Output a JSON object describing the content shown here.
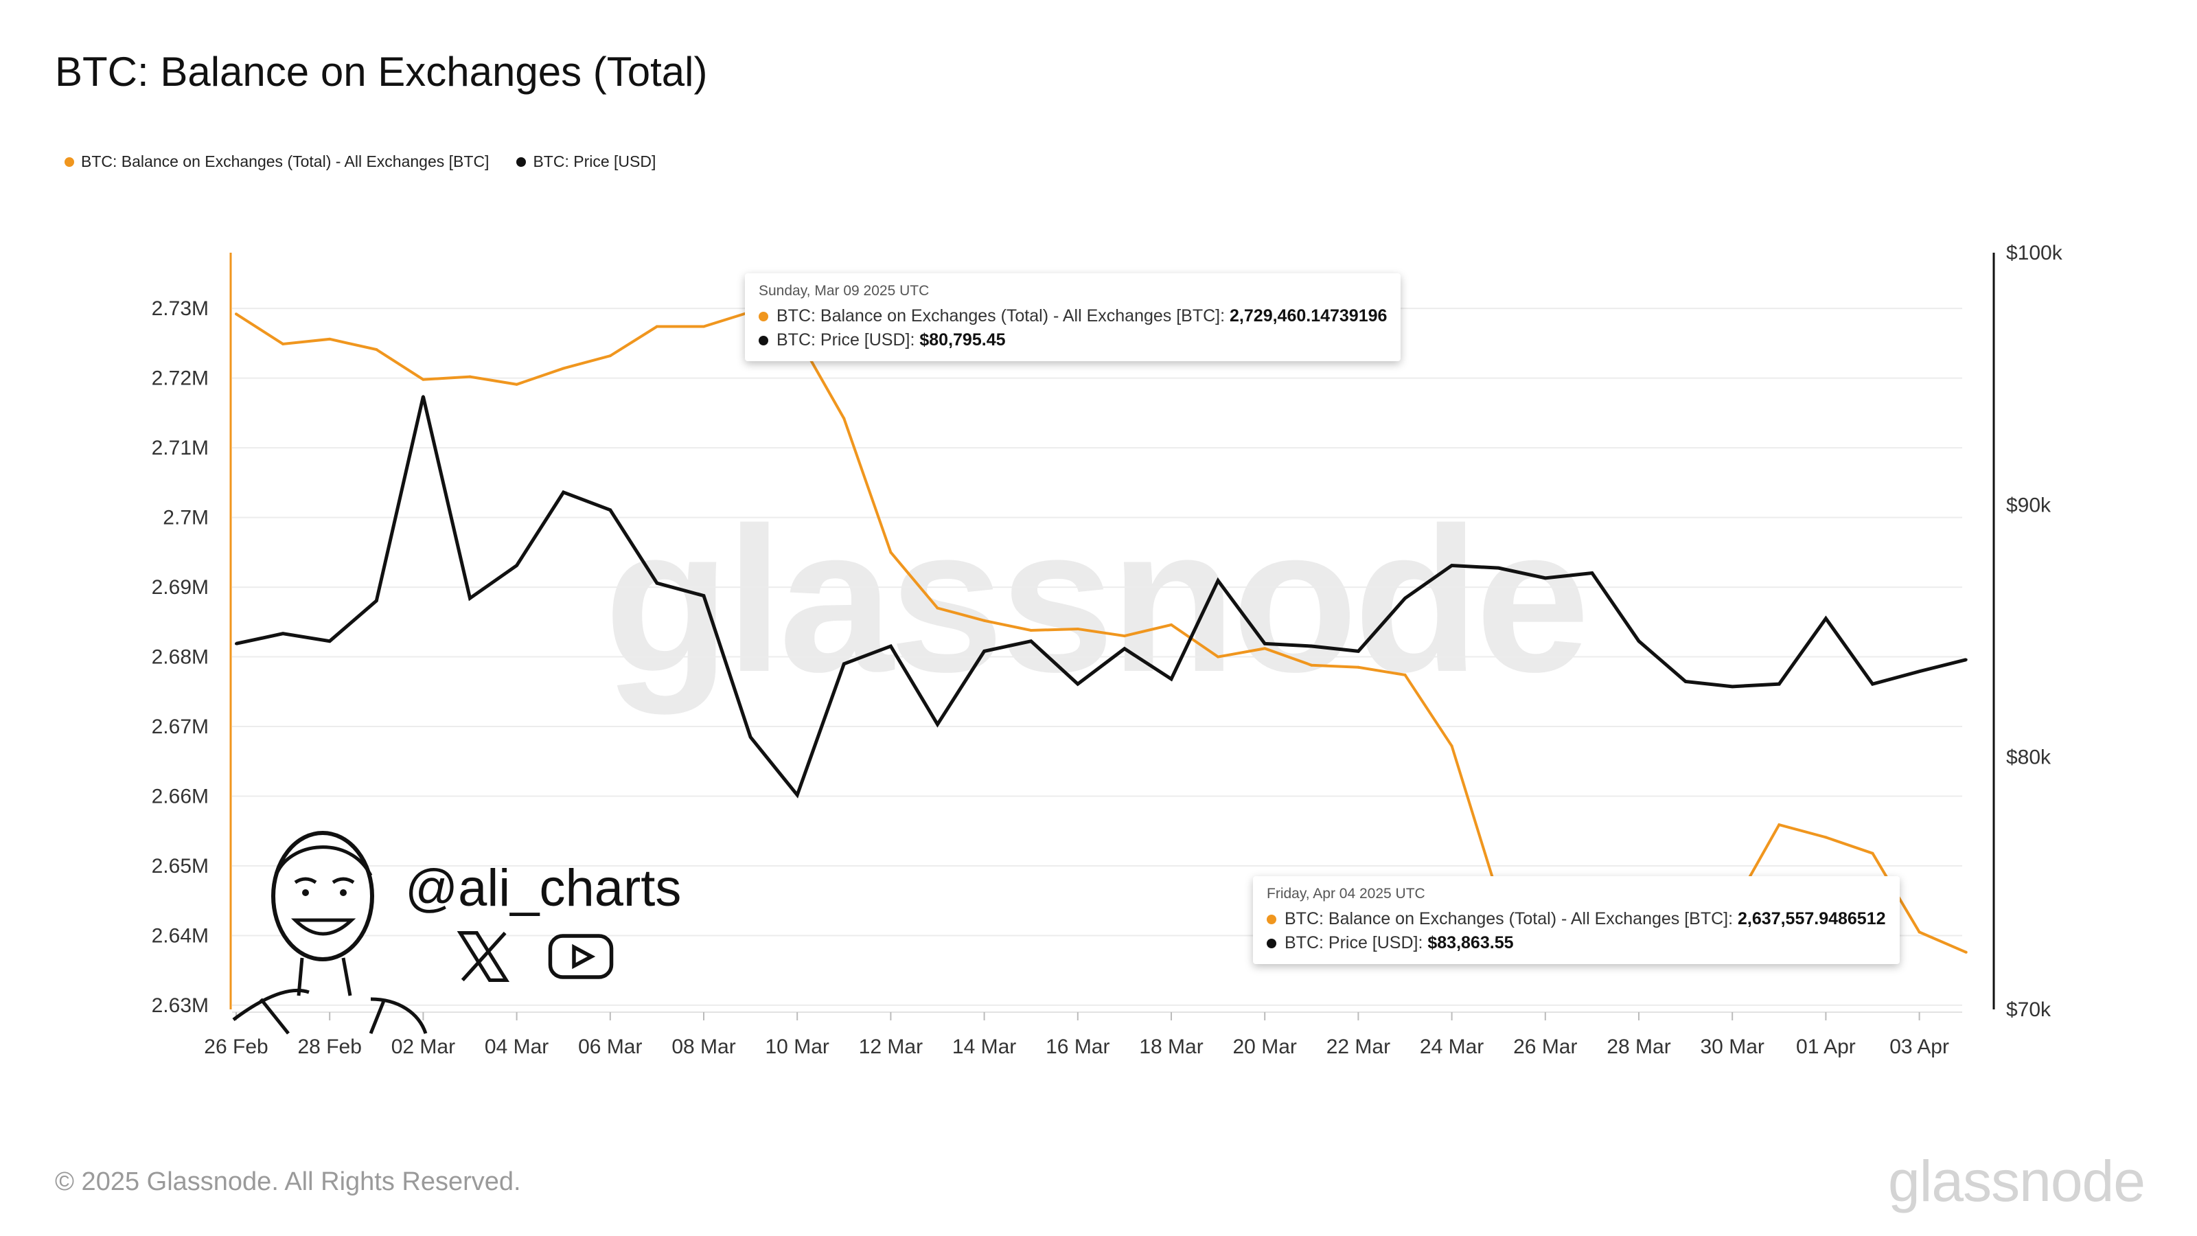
{
  "title": "BTC: Balance on Exchanges (Total)",
  "legend": [
    {
      "label": "BTC: Balance on Exchanges (Total) - All Exchanges [BTC]",
      "color": "#f0961e"
    },
    {
      "label": "BTC: Price [USD]",
      "color": "#111111"
    }
  ],
  "watermark": "glassnode",
  "footer": {
    "copyright": "© 2025 Glassnode. All Rights Reserved.",
    "logo": "glassnode"
  },
  "ali": {
    "handle": "@ali_charts",
    "icons": [
      "avatar-illustration",
      "x-logo-icon",
      "youtube-icon"
    ]
  },
  "tooltips": [
    {
      "date": "Sunday, Mar 09 2025 UTC",
      "balance_label": "BTC: Balance on Exchanges (Total) - All Exchanges [BTC]: ",
      "balance_value": "2,729,460.14739196",
      "price_label": "BTC: Price [USD]: ",
      "price_value": "$80,795.45"
    },
    {
      "date": "Friday, Apr 04 2025 UTC",
      "balance_label": "BTC: Balance on Exchanges (Total) - All Exchanges [BTC]: ",
      "balance_value": "2,637,557.9486512",
      "price_label": "BTC: Price [USD]: ",
      "price_value": "$83,863.55"
    }
  ],
  "chart_data": {
    "type": "line",
    "title": "BTC: Balance on Exchanges (Total)",
    "x": [
      "26 Feb",
      "27 Feb",
      "28 Feb",
      "01 Mar",
      "02 Mar",
      "03 Mar",
      "04 Mar",
      "05 Mar",
      "06 Mar",
      "07 Mar",
      "08 Mar",
      "09 Mar",
      "10 Mar",
      "11 Mar",
      "12 Mar",
      "13 Mar",
      "14 Mar",
      "15 Mar",
      "16 Mar",
      "17 Mar",
      "18 Mar",
      "19 Mar",
      "20 Mar",
      "21 Mar",
      "22 Mar",
      "23 Mar",
      "24 Mar",
      "25 Mar",
      "26 Mar",
      "27 Mar",
      "28 Mar",
      "29 Mar",
      "30 Mar",
      "31 Mar",
      "01 Apr",
      "02 Apr",
      "03 Apr",
      "04 Apr"
    ],
    "x_tick_labels": [
      "26 Feb",
      "28 Feb",
      "02 Mar",
      "04 Mar",
      "06 Mar",
      "08 Mar",
      "10 Mar",
      "12 Mar",
      "14 Mar",
      "16 Mar",
      "18 Mar",
      "20 Mar",
      "22 Mar",
      "24 Mar",
      "26 Mar",
      "28 Mar",
      "30 Mar",
      "01 Apr",
      "03 Apr"
    ],
    "left_axis": {
      "ylim": [
        2.6294,
        2.738
      ],
      "ticks": [
        2.63,
        2.64,
        2.65,
        2.66,
        2.67,
        2.68,
        2.69,
        2.7,
        2.71,
        2.72,
        2.73
      ],
      "tick_labels": [
        "2.63M",
        "2.64M",
        "2.65M",
        "2.66M",
        "2.67M",
        "2.68M",
        "2.69M",
        "2.7M",
        "2.71M",
        "2.72M",
        "2.73M"
      ]
    },
    "right_axis": {
      "ylim": [
        70000,
        100000
      ],
      "ticks": [
        70000,
        80000,
        90000,
        100000
      ],
      "tick_labels": [
        "$70k",
        "$80k",
        "$90k",
        "$100k"
      ]
    },
    "grid": true,
    "series": [
      {
        "name": "BTC: Balance on Exchanges (Total) - All Exchanges [BTC]",
        "axis": "left",
        "color": "#f0961e",
        "values": [
          2.7292,
          2.7249,
          2.7256,
          2.7241,
          2.7198,
          2.7202,
          2.7191,
          2.7214,
          2.7232,
          2.7274,
          2.7274,
          2.7295,
          2.726,
          2.7142,
          2.695,
          2.687,
          2.6852,
          2.6838,
          2.684,
          2.683,
          2.6846,
          2.68,
          2.6812,
          2.6788,
          2.6785,
          2.6774,
          2.6672,
          2.6455,
          2.643,
          2.643,
          2.643,
          2.643,
          2.644,
          2.6559,
          2.6541,
          2.6518,
          2.6405,
          2.6376
        ]
      },
      {
        "name": "BTC: Price [USD]",
        "axis": "right",
        "color": "#111111",
        "values": [
          84500,
          84900,
          84600,
          86200,
          94300,
          86300,
          87600,
          90500,
          89800,
          86900,
          86400,
          80795,
          78500,
          83700,
          84400,
          81300,
          84200,
          84600,
          82900,
          84300,
          83100,
          87000,
          84500,
          84400,
          84200,
          86300,
          87600,
          87500,
          87100,
          87300,
          84600,
          83000,
          82800,
          82900,
          85500,
          82900,
          83400,
          83864
        ]
      }
    ],
    "highlight_indices": [
      11,
      37
    ]
  }
}
